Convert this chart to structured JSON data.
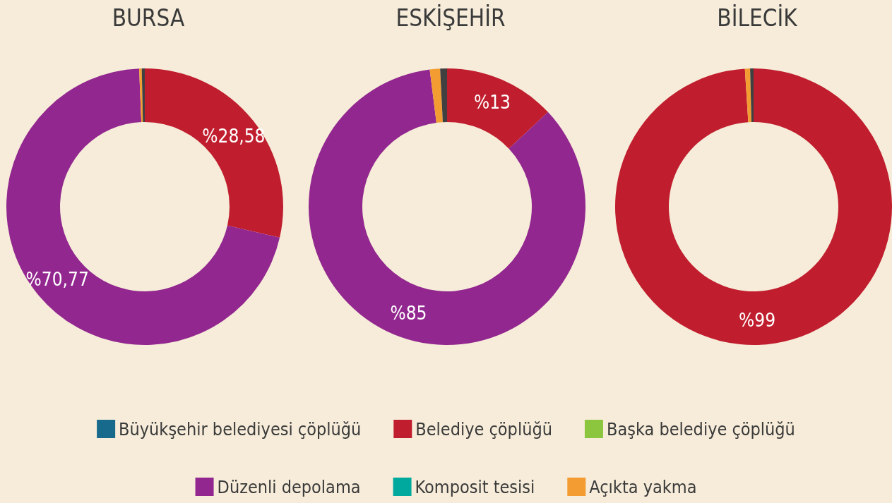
{
  "chart_data": {
    "type": "donut",
    "categories": [
      "Büyükşehir belediyesi çöplüğü",
      "Belediye çöplüğü",
      "Başka belediye çöplüğü",
      "Düzenli depolama",
      "Komposit tesisi",
      "Açıkta yakma",
      null
    ],
    "colors": [
      "#176a8c",
      "#c01e2e",
      "#8cc63f",
      "#92278f",
      "#00a99d",
      "#f39c32",
      "#404040"
    ],
    "legend": "bottom",
    "series": [
      {
        "name": "BURSA",
        "values": [
          0,
          28.58,
          0,
          70.77,
          0,
          0.3,
          0.35
        ],
        "value_labels": [
          null,
          "%28,58",
          null,
          "%70,77",
          null,
          null,
          null
        ]
      },
      {
        "name": "ESKİŞEHİR",
        "values": [
          0,
          13,
          0,
          85,
          0,
          1.2,
          0.8
        ],
        "value_labels": [
          null,
          "%13",
          null,
          "%85",
          null,
          null,
          null
        ]
      },
      {
        "name": "BİLECİK",
        "values": [
          0,
          99,
          0,
          0,
          0,
          0.6,
          0.4
        ],
        "value_labels": [
          null,
          "%99",
          null,
          null,
          null,
          null,
          null
        ]
      }
    ]
  }
}
